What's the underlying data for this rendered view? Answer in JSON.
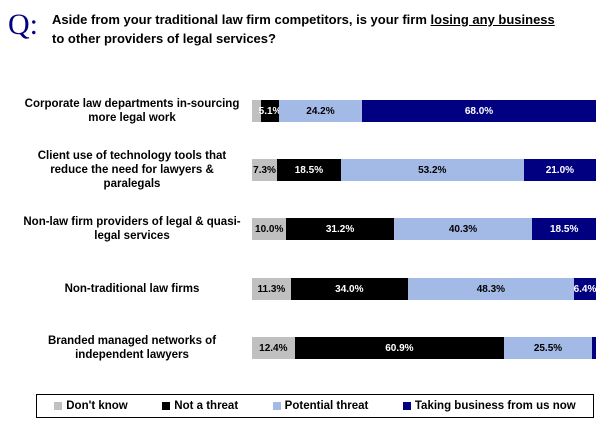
{
  "chart_data": {
    "type": "stacked-bar-horizontal",
    "question_mark": "Q:",
    "title_parts": [
      "Aside from your traditional law firm competitors, is your firm ",
      "losing any business",
      "to other providers of legal services?"
    ],
    "categories": [
      "Corporate law departments in-sourcing more legal work",
      "Client use of technology tools that reduce the need for lawyers & paralegals",
      "Non-law firm providers of legal & quasi-legal services",
      "Non-traditional law firms",
      "Branded managed networks of independent lawyers"
    ],
    "xlim": [
      0,
      100
    ],
    "series": [
      {
        "name": "Don't know",
        "color": "#c0c0c0",
        "label_color": "#000000",
        "values": [
          2.7,
          7.3,
          10.0,
          11.3,
          12.4
        ],
        "value_labels": [
          null,
          "7.3%",
          "10.0%",
          "11.3%",
          "12.4%"
        ]
      },
      {
        "name": "Not a threat",
        "color": "#000000",
        "label_color": "#ffffff",
        "values": [
          5.1,
          18.5,
          31.2,
          34.0,
          60.9
        ],
        "value_labels": [
          "5.1%",
          "18.5%",
          "31.2%",
          "34.0%",
          "60.9%"
        ]
      },
      {
        "name": "Potential threat",
        "color": "#a3b9e6",
        "label_color": "#000000",
        "values": [
          24.2,
          53.2,
          40.3,
          48.3,
          25.5
        ],
        "value_labels": [
          "24.2%",
          "53.2%",
          "40.3%",
          "48.3%",
          "25.5%"
        ]
      },
      {
        "name": "Taking business from us now",
        "color": "#000080",
        "label_color": "#ffffff",
        "values": [
          68.0,
          21.0,
          18.5,
          6.4,
          1.2
        ],
        "value_labels": [
          "68.0%",
          "21.0%",
          "18.5%",
          "6.4%",
          null
        ]
      }
    ]
  }
}
